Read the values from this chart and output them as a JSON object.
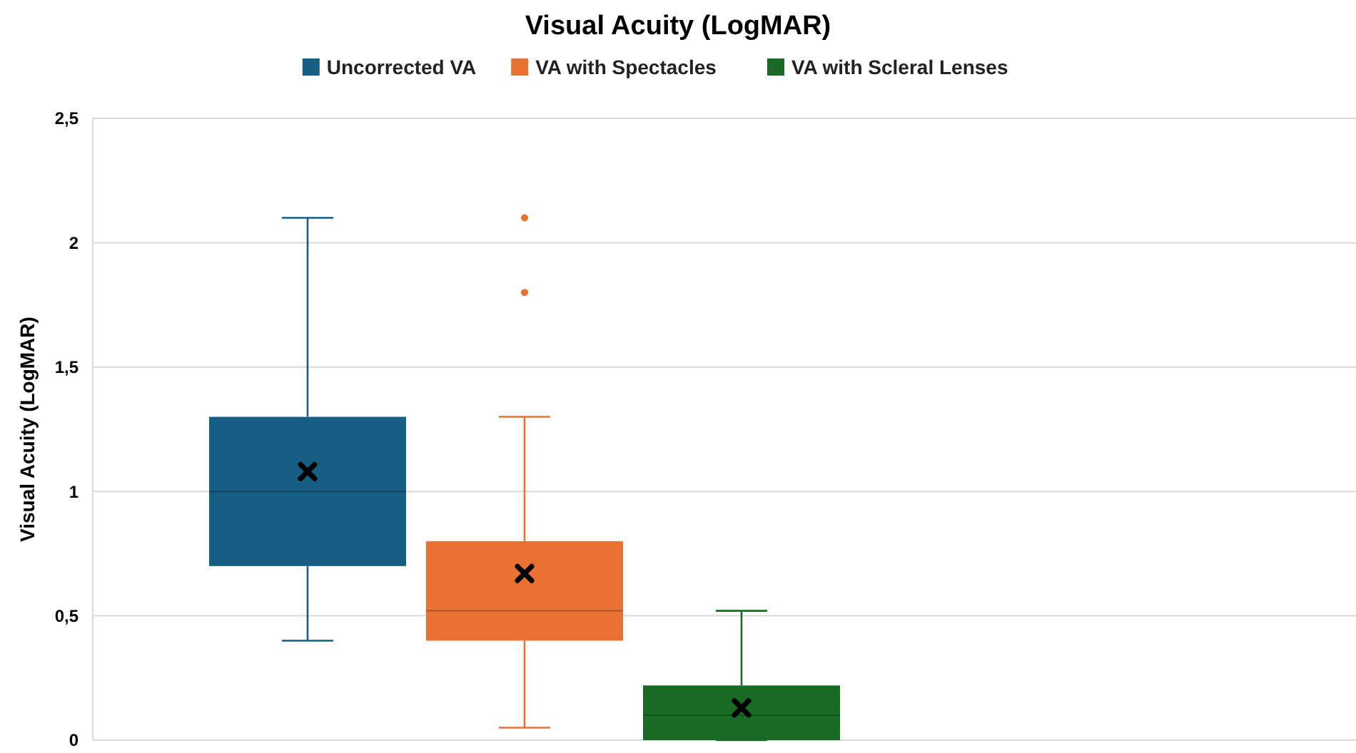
{
  "chart_data": {
    "type": "box",
    "title": "Visual Acuity (LogMAR)",
    "ylabel": "Visual Acuity (LogMAR)",
    "categories": [
      null
    ],
    "ylim": [
      0,
      2.5
    ],
    "yticks": [
      0,
      {
        "value": 0.5,
        "label": "0,5"
      },
      1,
      {
        "value": 1.5,
        "label": "1,5"
      },
      2,
      {
        "value": 2.5,
        "label": "2,5"
      }
    ],
    "grid": "y",
    "legend": "top",
    "marker": "cross",
    "series": [
      {
        "name": "Uncorrected VA",
        "color": "#165e83",
        "boxes": [
          {
            "low": 0.4,
            "q1": 0.7,
            "median": 1.0,
            "q3": 1.3,
            "high": 2.1,
            "mean": 1.08
          }
        ]
      },
      {
        "name": "VA with Spectacles",
        "color": "#e97132",
        "boxes": [
          {
            "low": 0.05,
            "q1": 0.4,
            "median": 0.52,
            "q3": 0.8,
            "high": 1.3,
            "mean": 0.67,
            "outliers": [
              1.8,
              2.1
            ]
          }
        ]
      },
      {
        "name": "VA with Scleral Lenses",
        "color": "#196b24",
        "boxes": [
          {
            "low": 0,
            "q1": 0,
            "median": 0.1,
            "q3": 0.22,
            "high": 0.52,
            "mean": 0.13
          }
        ]
      }
    ]
  }
}
